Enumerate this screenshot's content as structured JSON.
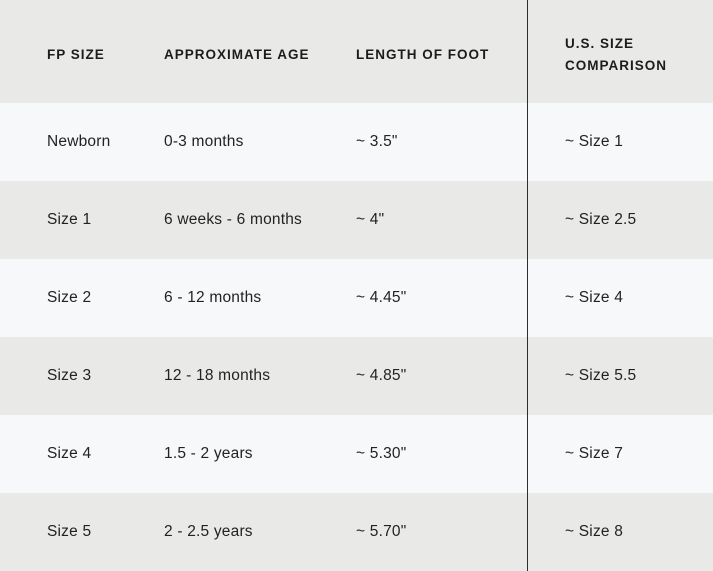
{
  "chart_data": {
    "type": "table",
    "title": "",
    "columns": [
      "FP SIZE",
      "APPROXIMATE AGE",
      "LENGTH OF FOOT",
      "U.S. SIZE COMPARISON"
    ],
    "rows": [
      [
        "Newborn",
        "0-3 months",
        "~ 3.5\"",
        "~ Size 1"
      ],
      [
        "Size 1",
        "6 weeks - 6 months",
        "~ 4\"",
        "~ Size 2.5"
      ],
      [
        "Size 2",
        "6 - 12 months",
        "~ 4.45\"",
        "~ Size 4"
      ],
      [
        "Size 3",
        "12 - 18 months",
        "~ 4.85\"",
        "~ Size 5.5"
      ],
      [
        "Size 4",
        "1.5 - 2 years",
        "~ 5.30\"",
        "~ Size 7"
      ],
      [
        "Size 5",
        "2 - 2.5 years",
        "~ 5.70\"",
        "~ Size 8"
      ]
    ],
    "layout": {
      "striped_rows": true,
      "divider_before_last_column": true,
      "legend": "none",
      "grid": "off"
    }
  },
  "colors": {
    "header_bg": "#e9e9e8",
    "row_light_bg": "#f7f8f9",
    "row_dark_bg": "#e9e9e7",
    "text": "#1f1f1f",
    "divider": "#2e2e2e"
  }
}
